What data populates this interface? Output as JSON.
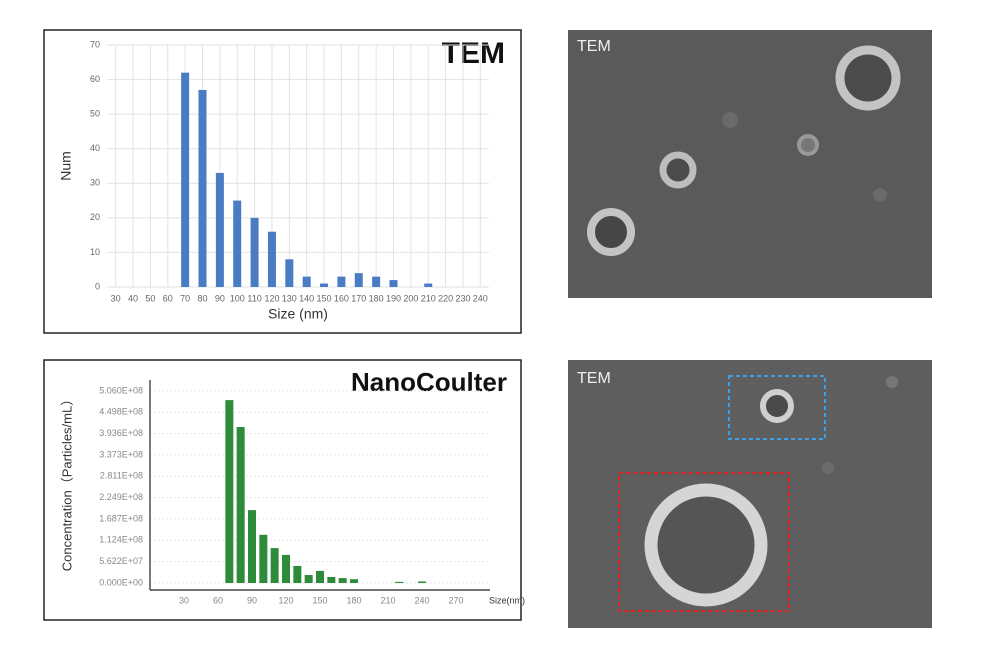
{
  "chart_data": [
    {
      "type": "bar",
      "title": "TEM",
      "xlabel": "Size (nm)",
      "ylabel": "Num",
      "categories": [
        30,
        40,
        50,
        60,
        70,
        80,
        90,
        100,
        110,
        120,
        130,
        140,
        150,
        160,
        170,
        180,
        190,
        200,
        210,
        220,
        230,
        240
      ],
      "values": [
        0,
        0,
        0,
        0,
        62,
        57,
        33,
        25,
        20,
        16,
        8,
        3,
        1,
        3,
        4,
        3,
        2,
        0,
        1,
        0,
        0,
        0
      ],
      "color": "#4a7cc4",
      "ylim": [
        0,
        70
      ],
      "yticks": [
        0,
        10,
        20,
        30,
        40,
        50,
        60,
        70
      ],
      "grid": true
    },
    {
      "type": "bar",
      "title": "NanoCoulter",
      "xlabel": "Size(nm)",
      "ylabel": "Concentration（Particles/mL）",
      "x": [
        70,
        80,
        90,
        100,
        110,
        120,
        130,
        140,
        150,
        160,
        170,
        180,
        220,
        240
      ],
      "values": [
        482000000,
        411000000,
        192000000,
        127000000,
        92000000,
        74000000,
        45000000,
        21000000,
        32000000,
        16000000,
        13000000,
        10000000,
        3000000,
        4000000
      ],
      "color": "#2e8b3a",
      "xlim": [
        0,
        300
      ],
      "xticks": [
        30,
        60,
        90,
        120,
        150,
        180,
        210,
        240,
        270
      ],
      "ylim": [
        0,
        506000000
      ],
      "yticks": [
        {
          "value": 0,
          "label": "0.000E+00"
        },
        {
          "value": 56220000,
          "label": "5.622E+07"
        },
        {
          "value": 112400000,
          "label": "1.124E+08"
        },
        {
          "value": 168700000,
          "label": "1.687E+08"
        },
        {
          "value": 224900000,
          "label": "2.249E+08"
        },
        {
          "value": 281100000,
          "label": "2.811E+08"
        },
        {
          "value": 337300000,
          "label": "3.373E+08"
        },
        {
          "value": 393600000,
          "label": "3.936E+08"
        },
        {
          "value": 449800000,
          "label": "4.498E+08"
        },
        {
          "value": 506000000,
          "label": "5.060E+08"
        }
      ],
      "grid": true
    }
  ],
  "images": [
    {
      "label": "TEM"
    },
    {
      "label": "TEM"
    }
  ]
}
